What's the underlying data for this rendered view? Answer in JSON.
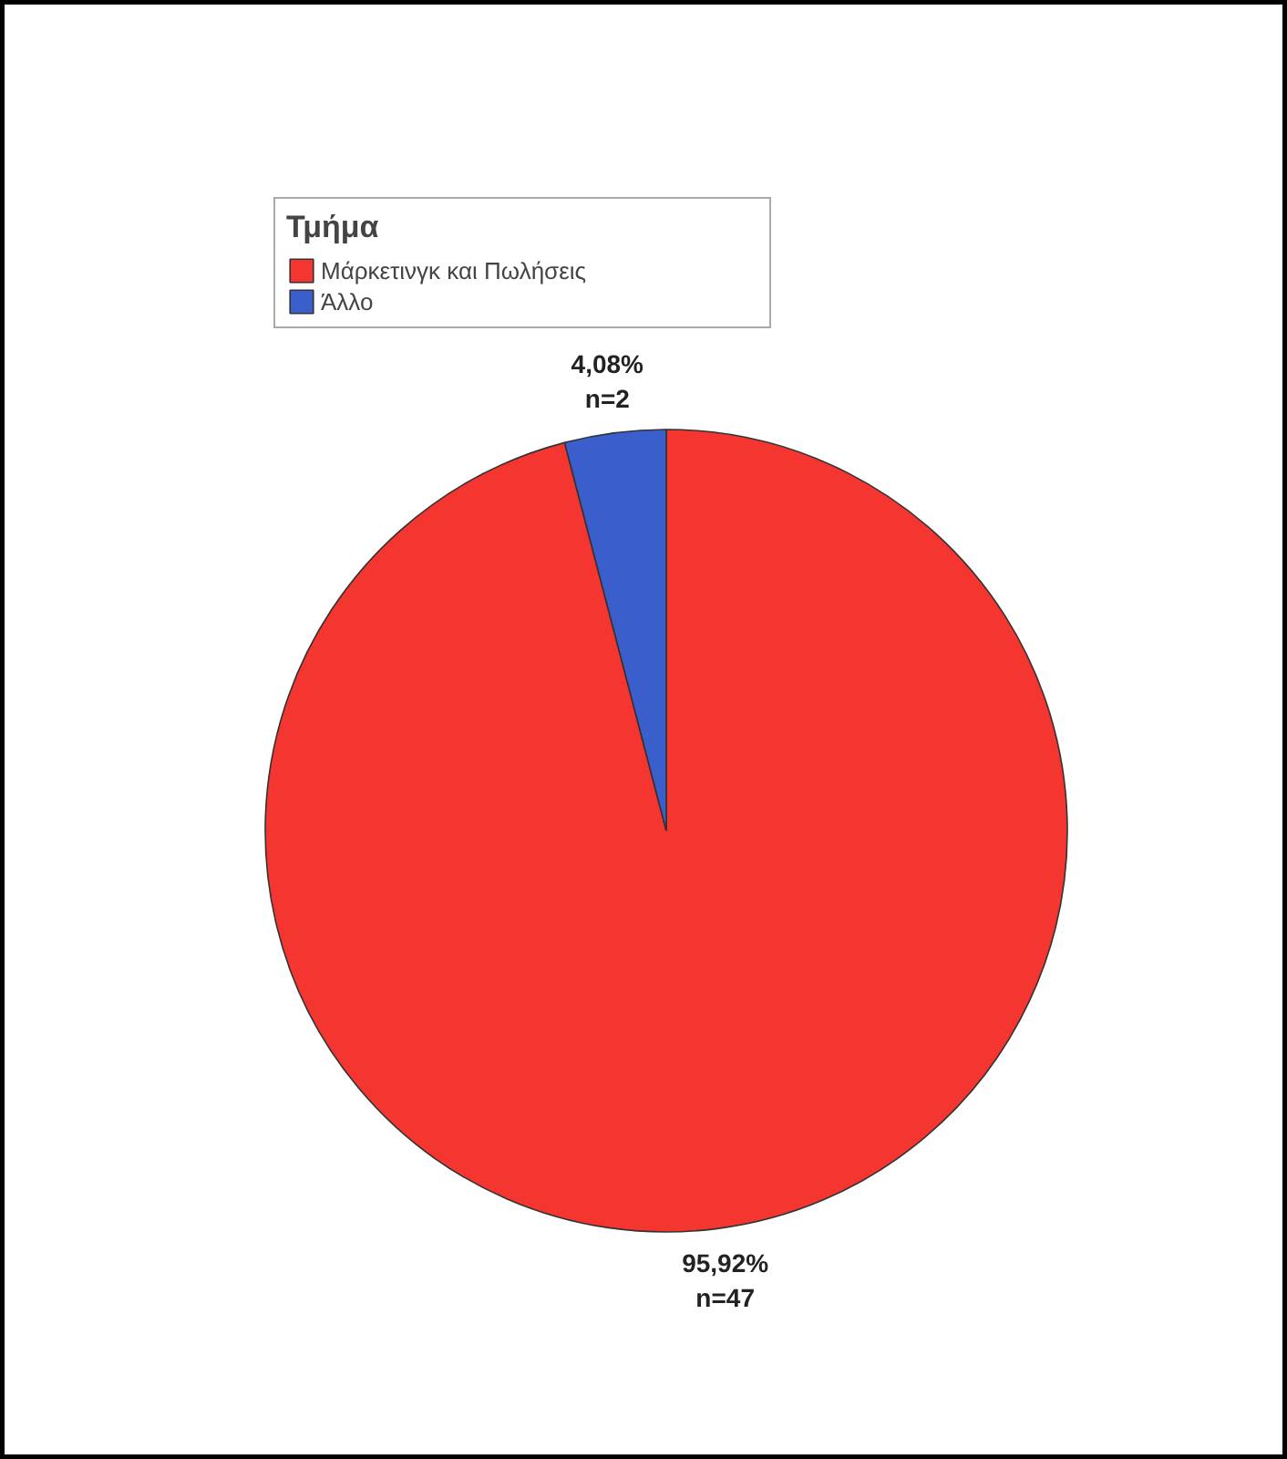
{
  "chart_data": {
    "type": "pie",
    "legend_title": "Τμήμα",
    "categories": [
      "Μάρκετινγκ και Πωλήσεις",
      "Άλλο"
    ],
    "values": [
      95.92,
      4.08
    ],
    "colors": [
      "#f43530",
      "#3a5fcd"
    ],
    "value_labels": [
      "95,92%\nn=47",
      "4,08%\nn=2"
    ],
    "legend": "top left"
  }
}
